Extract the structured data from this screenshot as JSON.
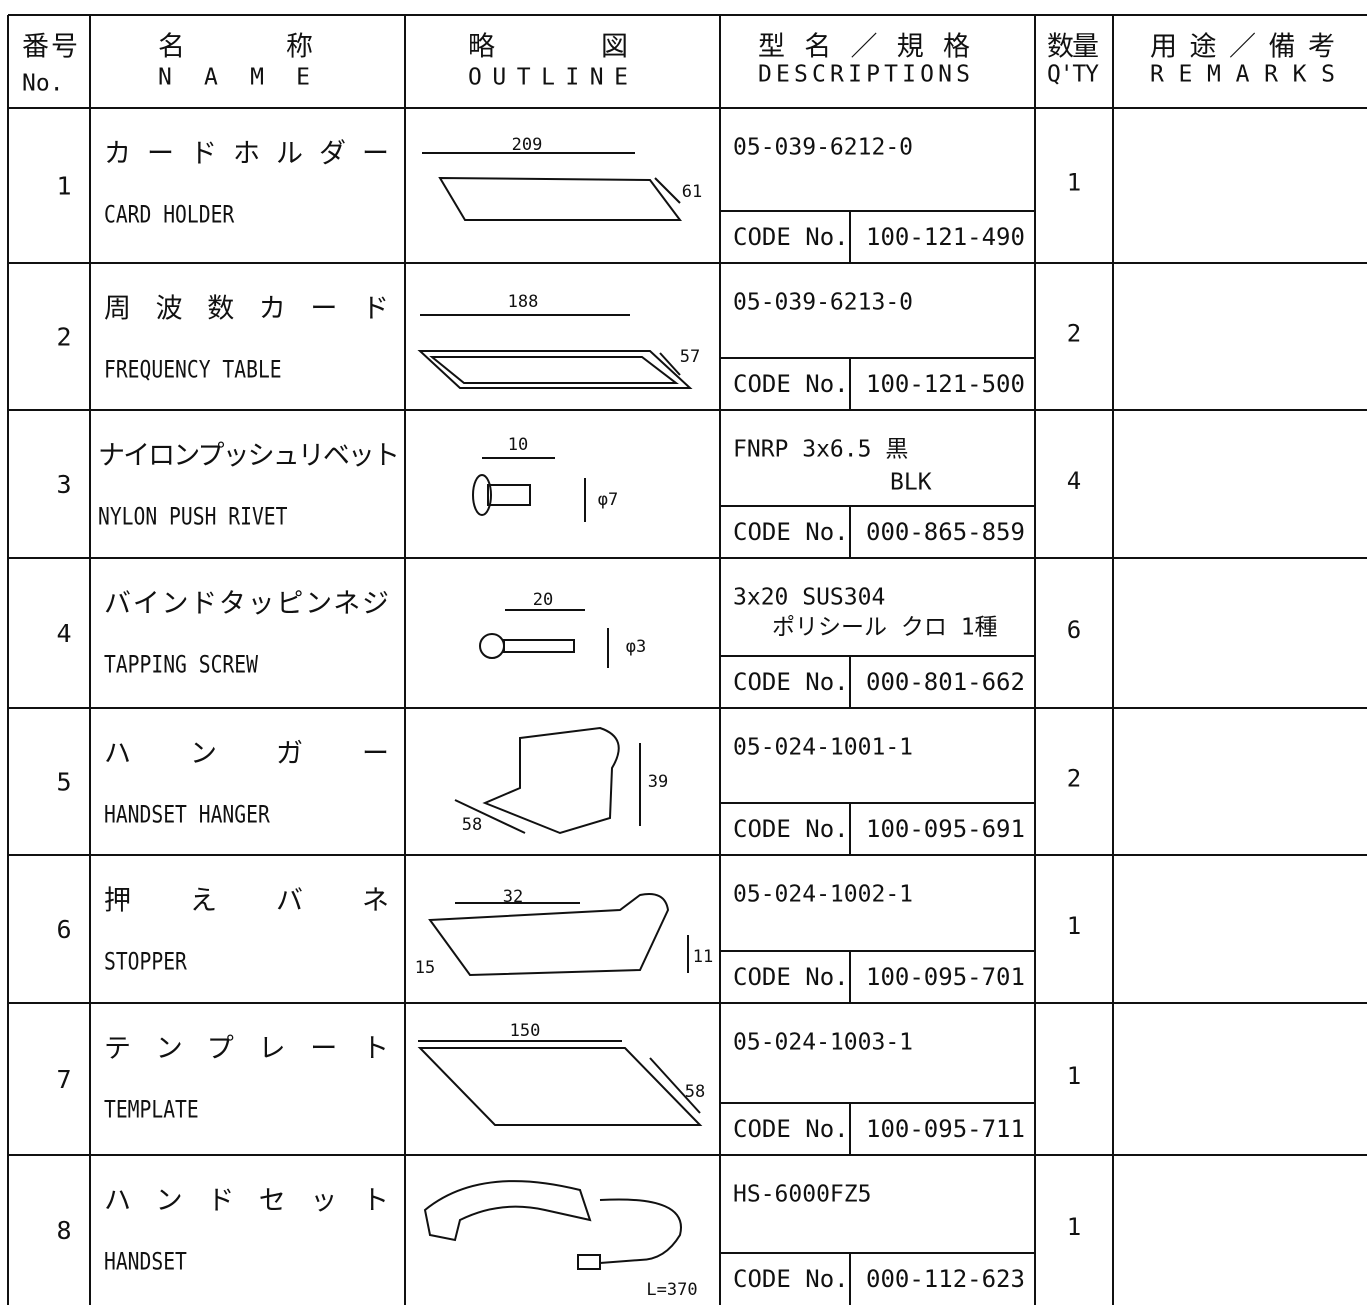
{
  "columns": [
    {
      "jp": "番号",
      "en": "No."
    },
    {
      "jp": "名称",
      "en": "NAME"
    },
    {
      "jp": "略図",
      "en": "OUTLINE"
    },
    {
      "jp": "型名／規格",
      "en": "DESCRIPTIONS"
    },
    {
      "jp": "数量",
      "en": "Q'TY"
    },
    {
      "jp": "用途／備考",
      "en": "REMARKS"
    }
  ],
  "rows": [
    {
      "no": "1",
      "name_jp": "カードホルダー",
      "name_en": "CARD HOLDER",
      "outline_labels": [
        "209",
        "61"
      ],
      "description": [
        "05-039-6212-0"
      ],
      "code_label": "CODE No.",
      "code": "100-121-490",
      "qty": "1"
    },
    {
      "no": "2",
      "name_jp": "周波数カード",
      "name_en": "FREQUENCY TABLE",
      "outline_labels": [
        "188",
        "57"
      ],
      "description": [
        "05-039-6213-0"
      ],
      "code_label": "CODE No.",
      "code": "100-121-500",
      "qty": "2"
    },
    {
      "no": "3",
      "name_jp": "ナイロンプッシュリベット",
      "name_en": "NYLON PUSH RIVET",
      "outline_labels": [
        "10",
        "φ7"
      ],
      "description": [
        "FNRP 3x6.5 黒",
        "BLK"
      ],
      "code_label": "CODE No.",
      "code": "000-865-859",
      "qty": "4"
    },
    {
      "no": "4",
      "name_jp": "バインドタッピンネジ",
      "name_en": "TAPPING SCREW",
      "outline_labels": [
        "20",
        "φ3"
      ],
      "description": [
        "3x20 SUS304",
        "ポリシール クロ 1種"
      ],
      "code_label": "CODE No.",
      "code": "000-801-662",
      "qty": "6"
    },
    {
      "no": "5",
      "name_jp": "ハンガー",
      "name_en": "HANDSET HANGER",
      "outline_labels": [
        "39",
        "58"
      ],
      "description": [
        "05-024-1001-1"
      ],
      "code_label": "CODE No.",
      "code": "100-095-691",
      "qty": "2"
    },
    {
      "no": "6",
      "name_jp": "押えバネ",
      "name_en": "STOPPER",
      "outline_labels": [
        "32",
        "15",
        "11"
      ],
      "description": [
        "05-024-1002-1"
      ],
      "code_label": "CODE No.",
      "code": "100-095-701",
      "qty": "1"
    },
    {
      "no": "7",
      "name_jp": "テンプレート",
      "name_en": "TEMPLATE",
      "outline_labels": [
        "150",
        "58"
      ],
      "description": [
        "05-024-1003-1"
      ],
      "code_label": "CODE No.",
      "code": "100-095-711",
      "qty": "1"
    },
    {
      "no": "8",
      "name_jp": "ハンドセット",
      "name_en": "HANDSET",
      "outline_labels": [
        "L=370"
      ],
      "description": [
        "HS-6000FZ5"
      ],
      "code_label": "CODE No.",
      "code": "000-112-623",
      "qty": "1"
    }
  ]
}
